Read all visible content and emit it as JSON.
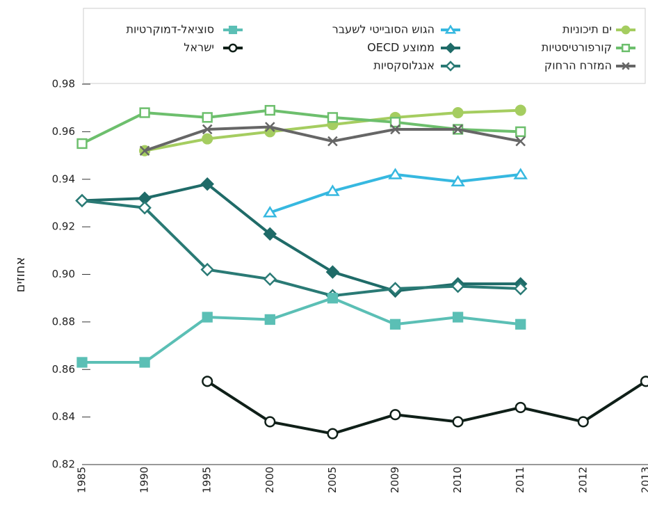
{
  "chart_data": {
    "type": "line",
    "y_label": "אחוזים",
    "categories": [
      "1985",
      "1990",
      "1995",
      "2000",
      "2005",
      "2009",
      "2010",
      "2011",
      "2012",
      "2013"
    ],
    "ylim": [
      0.82,
      0.98
    ],
    "yticks": [
      {
        "value": 0.82,
        "label": "0.82"
      },
      {
        "value": 0.84,
        "label": "0.84"
      },
      {
        "value": 0.86,
        "label": "0.86"
      },
      {
        "value": 0.88,
        "label": "0.88"
      },
      {
        "value": 0.9,
        "label": "0.90"
      },
      {
        "value": 0.92,
        "label": "0.92"
      },
      {
        "value": 0.94,
        "label": "0.94"
      },
      {
        "value": 0.96,
        "label": "0.96"
      },
      {
        "value": 0.98,
        "label": "0.98"
      }
    ],
    "series": [
      {
        "name": "ים תיכוניות",
        "color": "#a5cd60",
        "marker": "circle",
        "filled": true,
        "values": [
          null,
          0.952,
          0.957,
          0.96,
          0.963,
          0.966,
          0.968,
          0.969,
          null,
          null
        ]
      },
      {
        "name": "קורפורטיסטיות",
        "color": "#6dbf6d",
        "marker": "square",
        "filled": false,
        "values": [
          0.955,
          0.968,
          0.966,
          0.969,
          0.966,
          0.964,
          0.961,
          0.96,
          null,
          null
        ]
      },
      {
        "name": "המזרח הרחוק",
        "color": "#666666",
        "marker": "x",
        "filled": false,
        "values": [
          null,
          0.952,
          0.961,
          0.962,
          0.956,
          0.961,
          0.961,
          0.956,
          null,
          null
        ]
      },
      {
        "name": "הגוש הסובייטי לשעבר",
        "color": "#36b8e0",
        "marker": "triangle",
        "filled": false,
        "values": [
          null,
          null,
          null,
          0.926,
          0.935,
          0.942,
          0.939,
          0.942,
          null,
          null
        ]
      },
      {
        "name": "ממוצע OECD",
        "color": "#1f6b68",
        "marker": "diamond",
        "filled": true,
        "values": [
          0.931,
          0.932,
          0.938,
          0.917,
          0.901,
          0.893,
          0.896,
          0.896,
          null,
          null
        ]
      },
      {
        "name": "אנגלוסקסיות",
        "color": "#2a7a75",
        "marker": "diamond",
        "filled": false,
        "values": [
          0.931,
          0.928,
          0.902,
          0.898,
          0.891,
          0.894,
          0.895,
          0.894,
          null,
          null
        ]
      },
      {
        "name": "סוציאל-דמוקרטיות",
        "color": "#5bbfb5",
        "marker": "square",
        "filled": true,
        "values": [
          0.863,
          0.863,
          0.882,
          0.881,
          0.89,
          0.879,
          0.882,
          0.879,
          null,
          null
        ]
      },
      {
        "name": "ישראל",
        "color": "#0f1f18",
        "marker": "circle",
        "filled": false,
        "values": [
          null,
          null,
          0.855,
          0.838,
          0.833,
          0.841,
          0.838,
          0.844,
          0.838,
          0.855
        ]
      }
    ]
  }
}
